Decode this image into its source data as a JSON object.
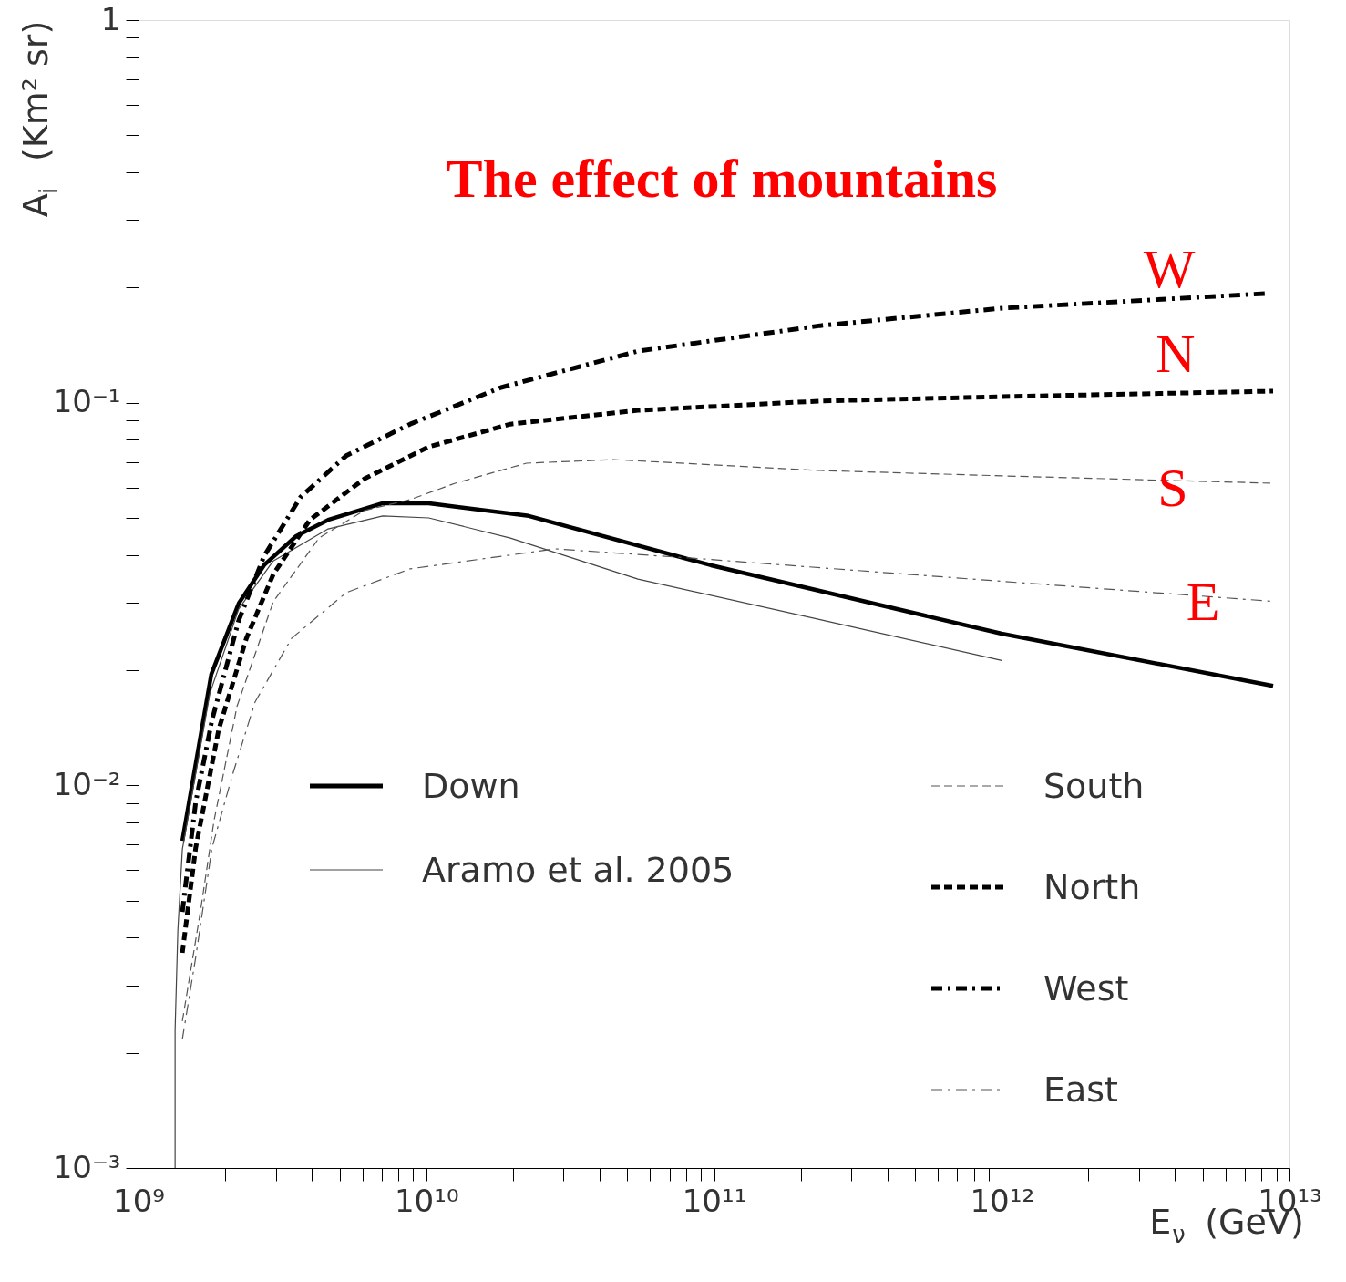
{
  "chart_data": {
    "type": "line",
    "title": "The effect of mountains",
    "xlabel": "E$_{ν}$ (GeV)",
    "ylabel": "A$_{i}$ (Km² sr)",
    "log": "xy",
    "legend": "bottom",
    "xlim": [
      1000000000.0,
      10000000000000.0
    ],
    "ylim": [
      0.001,
      1
    ],
    "xticks": [
      {
        "value": 1000000000.0,
        "label": "10⁹"
      },
      {
        "value": 2000000000.0,
        "label": null
      },
      {
        "value": 3000000000.0,
        "label": null
      },
      {
        "value": 4000000000.0,
        "label": null
      },
      {
        "value": 5000000000.0,
        "label": null
      },
      {
        "value": 6000000000.0,
        "label": null
      },
      {
        "value": 7000000000.0,
        "label": null
      },
      {
        "value": 8000000000.0,
        "label": null
      },
      {
        "value": 9000000000.0,
        "label": null
      },
      {
        "value": 10000000000.0,
        "label": "10¹⁰"
      },
      {
        "value": 20000000000.0,
        "label": null
      },
      {
        "value": 30000000000.0,
        "label": null
      },
      {
        "value": 40000000000.0,
        "label": null
      },
      {
        "value": 50000000000.0,
        "label": null
      },
      {
        "value": 60000000000.0,
        "label": null
      },
      {
        "value": 70000000000.0,
        "label": null
      },
      {
        "value": 80000000000.0,
        "label": null
      },
      {
        "value": 90000000000.0,
        "label": null
      },
      {
        "value": 100000000000.0,
        "label": "10¹¹"
      },
      {
        "value": 200000000000.0,
        "label": null
      },
      {
        "value": 300000000000.0,
        "label": null
      },
      {
        "value": 400000000000.0,
        "label": null
      },
      {
        "value": 500000000000.0,
        "label": null
      },
      {
        "value": 600000000000.0,
        "label": null
      },
      {
        "value": 700000000000.0,
        "label": null
      },
      {
        "value": 800000000000.0,
        "label": null
      },
      {
        "value": 900000000000.0,
        "label": null
      },
      {
        "value": 1000000000000.0,
        "label": "10¹²"
      },
      {
        "value": 2000000000000.0,
        "label": null
      },
      {
        "value": 3000000000000.0,
        "label": null
      },
      {
        "value": 4000000000000.0,
        "label": null
      },
      {
        "value": 5000000000000.0,
        "label": null
      },
      {
        "value": 6000000000000.0,
        "label": null
      },
      {
        "value": 7000000000000.0,
        "label": null
      },
      {
        "value": 8000000000000.0,
        "label": null
      },
      {
        "value": 9000000000000.0,
        "label": null
      },
      {
        "value": 10000000000000.0,
        "label": "10¹³"
      }
    ],
    "yticks": [
      {
        "value": 0.001,
        "label": "10⁻³"
      },
      {
        "value": 0.002,
        "label": null
      },
      {
        "value": 0.003,
        "label": null
      },
      {
        "value": 0.004,
        "label": null
      },
      {
        "value": 0.005,
        "label": null
      },
      {
        "value": 0.006,
        "label": null
      },
      {
        "value": 0.007,
        "label": null
      },
      {
        "value": 0.008,
        "label": null
      },
      {
        "value": 0.009,
        "label": null
      },
      {
        "value": 0.01,
        "label": "10⁻²"
      },
      {
        "value": 0.02,
        "label": null
      },
      {
        "value": 0.03,
        "label": null
      },
      {
        "value": 0.04,
        "label": null
      },
      {
        "value": 0.05,
        "label": null
      },
      {
        "value": 0.06,
        "label": null
      },
      {
        "value": 0.07,
        "label": null
      },
      {
        "value": 0.08,
        "label": null
      },
      {
        "value": 0.09,
        "label": null
      },
      {
        "value": 0.1,
        "label": "10⁻¹"
      },
      {
        "value": 0.2,
        "label": null
      },
      {
        "value": 0.3,
        "label": null
      },
      {
        "value": 0.4,
        "label": null
      },
      {
        "value": 0.5,
        "label": null
      },
      {
        "value": 0.6,
        "label": null
      },
      {
        "value": 0.7,
        "label": null
      },
      {
        "value": 0.8,
        "label": null
      },
      {
        "value": 0.9,
        "label": null
      },
      1
    ],
    "series": [
      {
        "name": "Down",
        "color": "#000000",
        "line_style": "solid",
        "x": [
          1420000000.0,
          1790000000.0,
          2230000000.0,
          2730000000.0,
          3530000000.0,
          4560000000.0,
          7060000000.0,
          10200000000.0,
          22700000000.0,
          97600000000.0,
          1000000000000.0,
          8770000000000.0
        ],
        "values": [
          0.00716,
          0.0195,
          0.0299,
          0.0376,
          0.0448,
          0.0494,
          0.0546,
          0.0546,
          0.0506,
          0.0376,
          0.0249,
          0.0182
        ]
      },
      {
        "name": "Aramo et al. 2005",
        "color": "#444444",
        "line_style": "solid",
        "x": [
          1340000000.0,
          1340000000.0,
          1370000000.0,
          1420000000.0,
          1770000000.0,
          2230000000.0,
          2940000000.0,
          4560000000.0,
          7060000000.0,
          10200000000.0,
          19600000000.0,
          54400000000.0,
          234000000000.0,
          1000000000000.0
        ],
        "values": [
          0.001,
          0.00229,
          0.00419,
          0.0068,
          0.0174,
          0.0289,
          0.0386,
          0.0468,
          0.0506,
          0.05,
          0.0443,
          0.0346,
          0.0271,
          0.0212
        ]
      },
      {
        "name": "South",
        "color": "#555555",
        "line_style": "dashed",
        "x": [
          1420000000.0,
          1640000000.0,
          1830000000.0,
          2200000000.0,
          2940000000.0,
          4240000000.0,
          6100000000.0,
          8790000000.0,
          12600000000.0,
          22300000000.0,
          44700000000.0,
          234000000000.0,
          1000000000000.0,
          8570000000000.0
        ],
        "values": [
          0.00242,
          0.00467,
          0.00809,
          0.0161,
          0.0302,
          0.0443,
          0.0523,
          0.0558,
          0.0616,
          0.0695,
          0.071,
          0.0665,
          0.0644,
          0.0616
        ]
      },
      {
        "name": "North",
        "color": "#000000",
        "line_style": "dashed",
        "x": [
          1420000000.0,
          1580000000.0,
          1900000000.0,
          2370000000.0,
          2940000000.0,
          3940000000.0,
          6100000000.0,
          10200000000.0,
          19600000000.0,
          54400000000.0,
          234000000000.0,
          1000000000000.0,
          8770000000000.0
        ],
        "values": [
          0.00365,
          0.00686,
          0.014,
          0.0242,
          0.0356,
          0.0494,
          0.0633,
          0.0767,
          0.0879,
          0.0955,
          0.101,
          0.1037,
          0.1072
        ]
      },
      {
        "name": "West",
        "color": "#000000",
        "line_style": "dashdot",
        "x": [
          1420000000.0,
          1580000000.0,
          1800000000.0,
          2230000000.0,
          2730000000.0,
          3660000000.0,
          5270000000.0,
          8790000000.0,
          18200000000.0,
          54400000000.0,
          234000000000.0,
          1000000000000.0,
          8340000000000.0
        ],
        "values": [
          0.00467,
          0.00903,
          0.0148,
          0.027,
          0.0397,
          0.0567,
          0.0727,
          0.0879,
          0.1096,
          0.1364,
          0.159,
          0.1766,
          0.193
        ]
      },
      {
        "name": "East",
        "color": "#555555",
        "line_style": "dashdot",
        "x": [
          1420000000.0,
          1580000000.0,
          1800000000.0,
          2120000000.0,
          2540000000.0,
          3400000000.0,
          5270000000.0,
          8790000000.0,
          28000000000.0,
          90000000000.0,
          920000000000.0,
          8570000000000.0
        ],
        "values": [
          0.00217,
          0.00355,
          0.00686,
          0.01064,
          0.0165,
          0.0242,
          0.0319,
          0.0368,
          0.0415,
          0.0391,
          0.0343,
          0.0303
        ]
      }
    ],
    "annotations": [
      "W",
      "N",
      "S",
      "E"
    ]
  }
}
